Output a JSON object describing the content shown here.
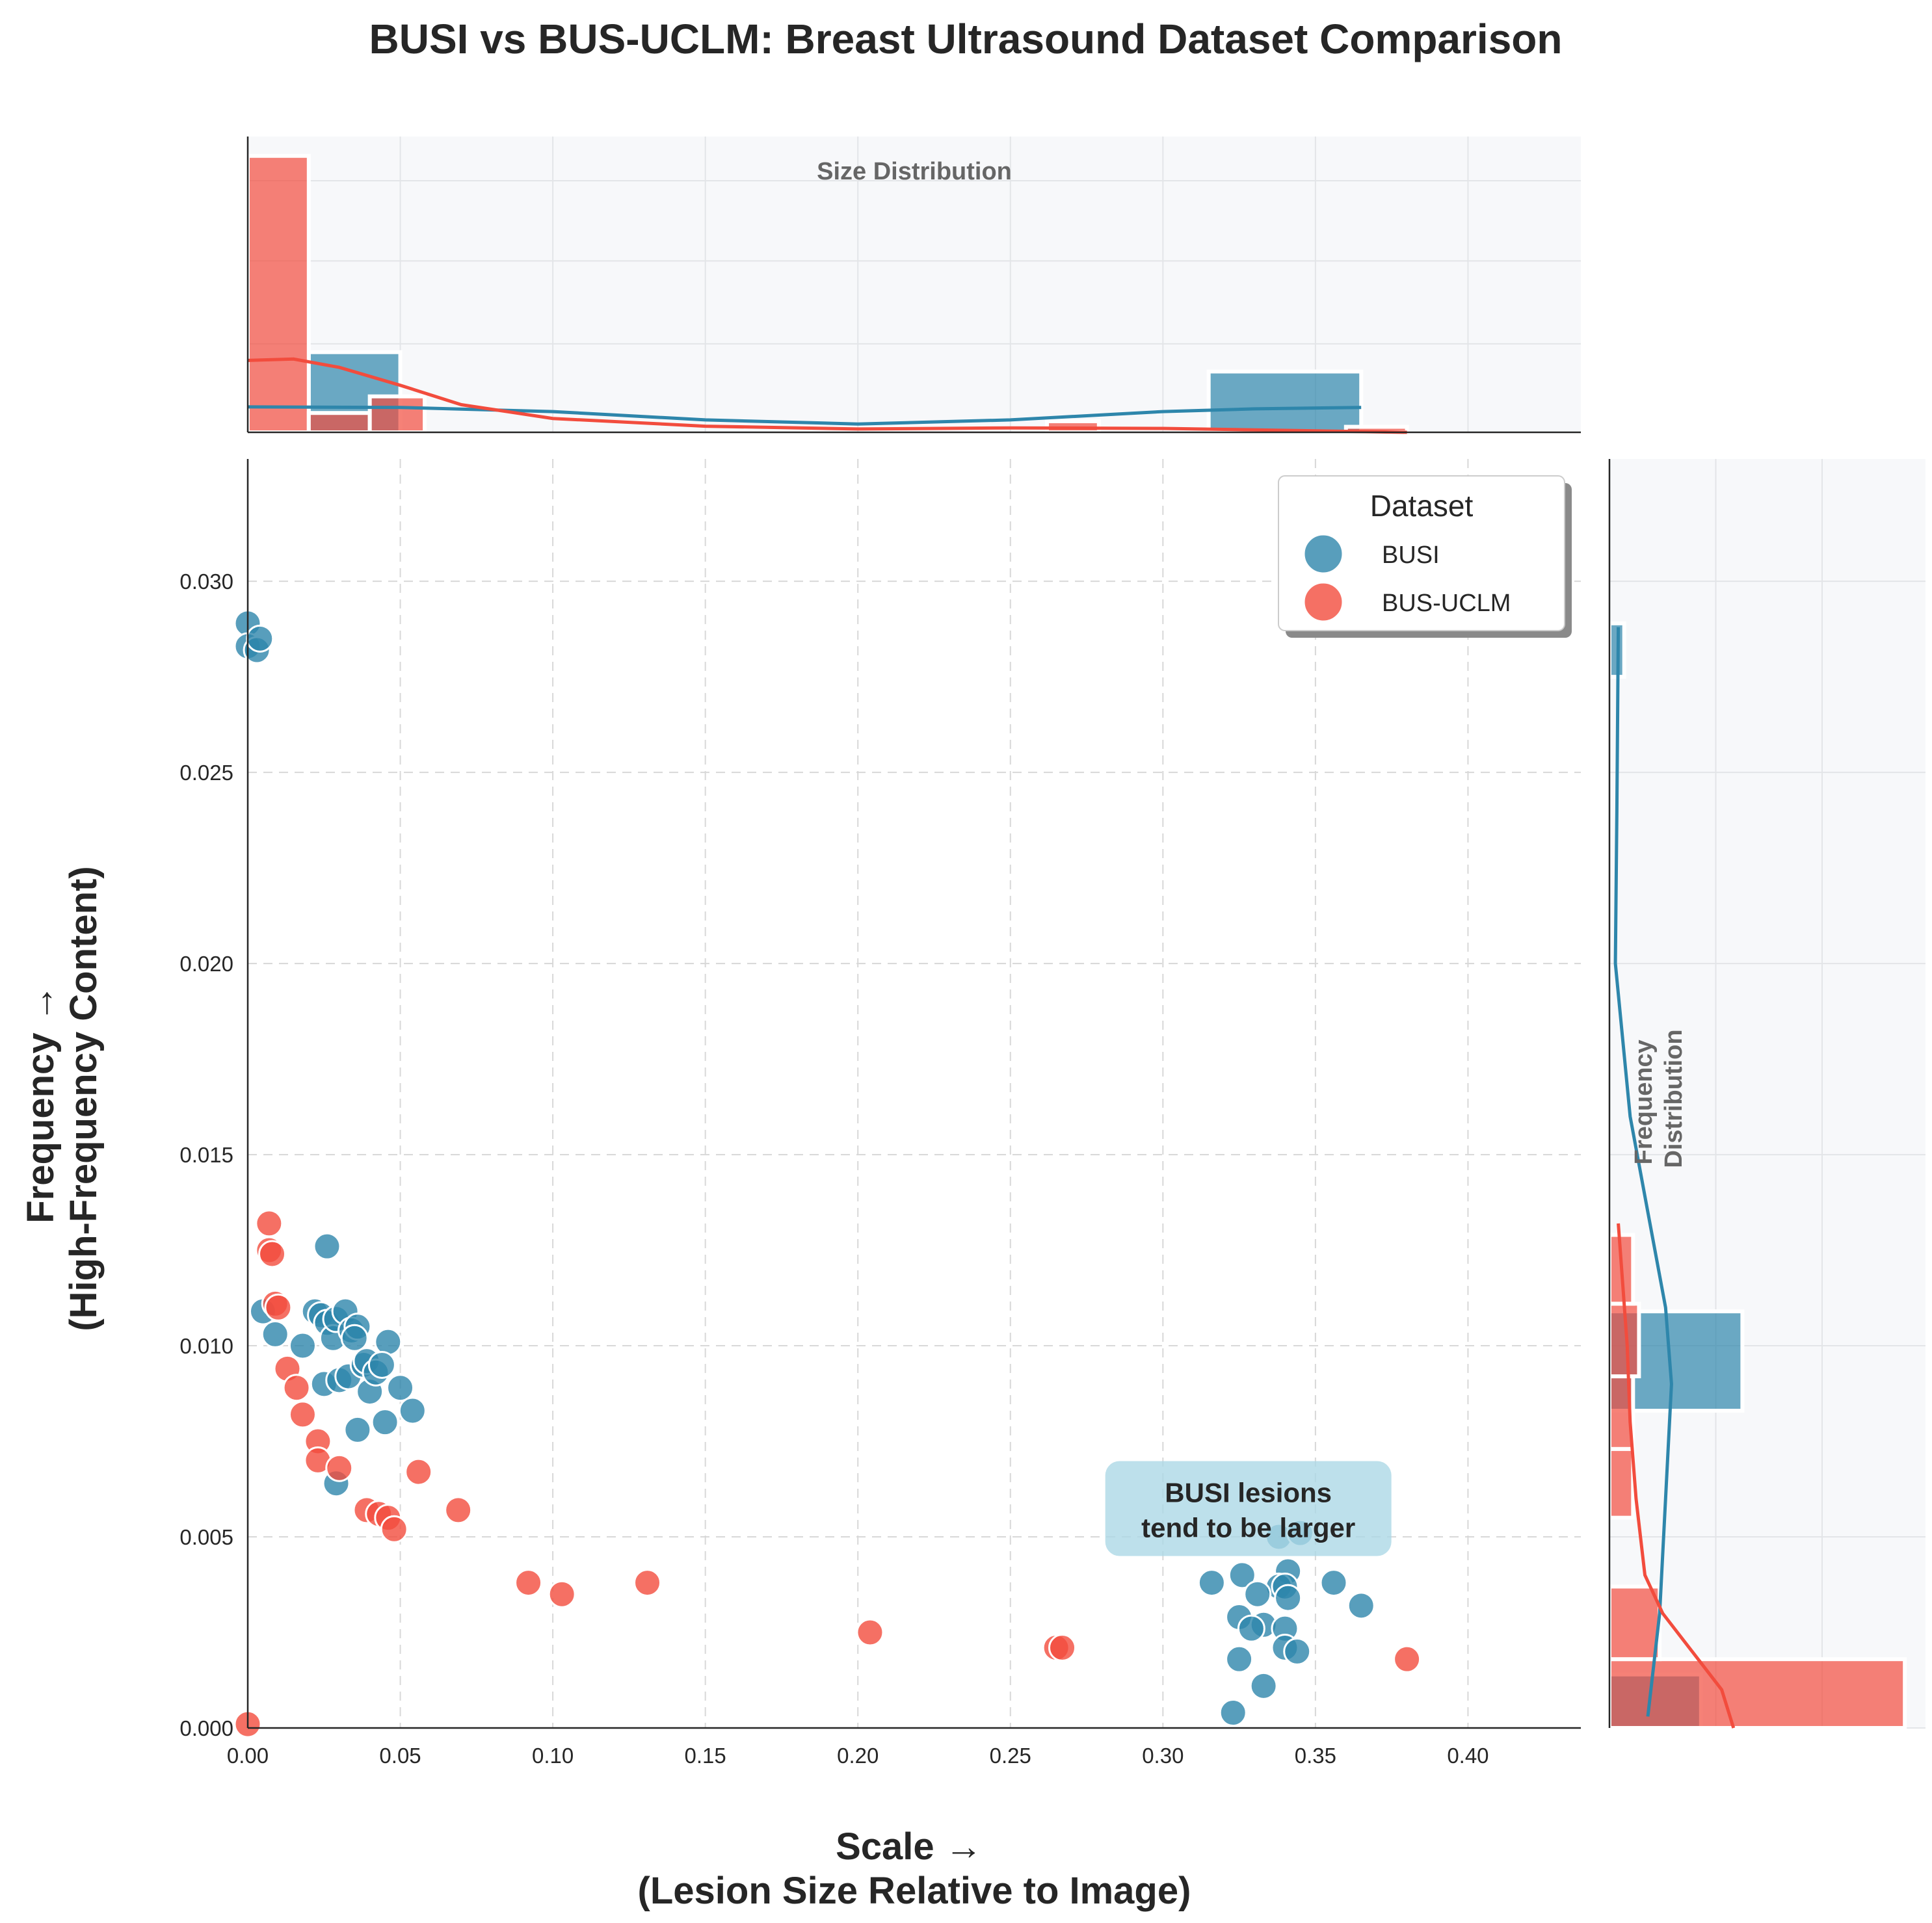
{
  "title": "BUSI vs BUS-UCLM: Breast Ultrasound Dataset Comparison",
  "chart_data": {
    "type": "scatter",
    "xlabel": [
      "Scale →",
      "(Lesion Size Relative to Image)"
    ],
    "ylabel": [
      "Frequency →",
      "(High-Frequency Content)"
    ],
    "xlim": [
      0.0,
      0.437
    ],
    "ylim": [
      0.0,
      0.0332
    ],
    "x_ticks": [
      "0.00",
      "0.05",
      "0.10",
      "0.15",
      "0.20",
      "0.25",
      "0.30",
      "0.35",
      "0.40"
    ],
    "y_ticks": [
      "0.000",
      "0.005",
      "0.010",
      "0.015",
      "0.020",
      "0.025",
      "0.030"
    ],
    "grid": true,
    "legend": {
      "title": "Dataset",
      "placement": "top-right"
    },
    "series": [
      {
        "name": "BUSI",
        "color": "#2e86ab",
        "points": [
          [
            0.0,
            0.0289
          ],
          [
            0.0,
            0.0283
          ],
          [
            0.003,
            0.0282
          ],
          [
            0.004,
            0.0285
          ],
          [
            0.026,
            0.0126
          ],
          [
            0.005,
            0.0109
          ],
          [
            0.009,
            0.0103
          ],
          [
            0.018,
            0.01
          ],
          [
            0.022,
            0.0109
          ],
          [
            0.024,
            0.0108
          ],
          [
            0.026,
            0.0106
          ],
          [
            0.028,
            0.0102
          ],
          [
            0.029,
            0.0107
          ],
          [
            0.032,
            0.0109
          ],
          [
            0.034,
            0.0104
          ],
          [
            0.036,
            0.0105
          ],
          [
            0.035,
            0.0102
          ],
          [
            0.046,
            0.0101
          ],
          [
            0.025,
            0.009
          ],
          [
            0.03,
            0.0091
          ],
          [
            0.033,
            0.0092
          ],
          [
            0.038,
            0.0095
          ],
          [
            0.039,
            0.0096
          ],
          [
            0.04,
            0.0088
          ],
          [
            0.042,
            0.0093
          ],
          [
            0.044,
            0.0095
          ],
          [
            0.05,
            0.0089
          ],
          [
            0.054,
            0.0083
          ],
          [
            0.036,
            0.0078
          ],
          [
            0.045,
            0.008
          ],
          [
            0.029,
            0.0064
          ],
          [
            0.338,
            0.005
          ],
          [
            0.345,
            0.0051
          ],
          [
            0.341,
            0.0041
          ],
          [
            0.326,
            0.004
          ],
          [
            0.316,
            0.0038
          ],
          [
            0.338,
            0.0037
          ],
          [
            0.356,
            0.0038
          ],
          [
            0.34,
            0.0037
          ],
          [
            0.331,
            0.0035
          ],
          [
            0.341,
            0.0034
          ],
          [
            0.365,
            0.0032
          ],
          [
            0.325,
            0.0029
          ],
          [
            0.333,
            0.0027
          ],
          [
            0.329,
            0.0026
          ],
          [
            0.34,
            0.0026
          ],
          [
            0.34,
            0.0021
          ],
          [
            0.344,
            0.002
          ],
          [
            0.325,
            0.0018
          ],
          [
            0.333,
            0.0011
          ],
          [
            0.323,
            0.0004
          ]
        ]
      },
      {
        "name": "BUS-UCLM",
        "color": "#f24c3d",
        "points": [
          [
            0.007,
            0.0132
          ],
          [
            0.007,
            0.0125
          ],
          [
            0.008,
            0.0124
          ],
          [
            0.009,
            0.0111
          ],
          [
            0.01,
            0.011
          ],
          [
            0.013,
            0.0094
          ],
          [
            0.016,
            0.0089
          ],
          [
            0.018,
            0.0082
          ],
          [
            0.023,
            0.0075
          ],
          [
            0.023,
            0.007
          ],
          [
            0.03,
            0.0068
          ],
          [
            0.056,
            0.0067
          ],
          [
            0.039,
            0.0057
          ],
          [
            0.043,
            0.0056
          ],
          [
            0.046,
            0.0055
          ],
          [
            0.048,
            0.0052
          ],
          [
            0.069,
            0.0057
          ],
          [
            0.092,
            0.0038
          ],
          [
            0.103,
            0.0035
          ],
          [
            0.131,
            0.0038
          ],
          [
            0.204,
            0.0025
          ],
          [
            0.265,
            0.0021
          ],
          [
            0.267,
            0.0021
          ],
          [
            0.38,
            0.0018
          ],
          [
            0.0,
            0.0001
          ]
        ]
      }
    ],
    "annotation": {
      "lines": [
        "BUSI lesions",
        "tend to be larger"
      ],
      "x": 0.328,
      "y": 0.0054
    },
    "marginal_top": {
      "label": "Size Distribution",
      "BUSI_hist": [
        [
          0.02,
          0.05,
          0.29
        ],
        [
          0.315,
          0.365,
          0.22
        ]
      ],
      "BUS_UCLM_hist": [
        [
          0.0,
          0.02,
          1.0
        ],
        [
          0.02,
          0.04,
          0.07
        ],
        [
          0.04,
          0.058,
          0.13
        ],
        [
          0.262,
          0.279,
          0.04
        ],
        [
          0.36,
          0.38,
          0.02
        ]
      ],
      "BUSI_kde": [
        [
          0.0,
          0.092
        ],
        [
          0.05,
          0.09
        ],
        [
          0.1,
          0.075
        ],
        [
          0.15,
          0.045
        ],
        [
          0.2,
          0.03
        ],
        [
          0.25,
          0.045
        ],
        [
          0.3,
          0.075
        ],
        [
          0.33,
          0.085
        ],
        [
          0.365,
          0.09
        ]
      ],
      "BUS_UCLM_kde": [
        [
          0.0,
          0.26
        ],
        [
          0.015,
          0.265
        ],
        [
          0.03,
          0.235
        ],
        [
          0.05,
          0.17
        ],
        [
          0.07,
          0.1
        ],
        [
          0.1,
          0.05
        ],
        [
          0.15,
          0.022
        ],
        [
          0.2,
          0.012
        ],
        [
          0.25,
          0.016
        ],
        [
          0.3,
          0.014
        ],
        [
          0.38,
          0.0
        ]
      ],
      "ymax": 1.07
    },
    "marginal_right": {
      "label": [
        "Frequency",
        "Distribution"
      ],
      "BUSI_hist": [
        [
          0.0,
          0.0014,
          0.31
        ],
        [
          0.0083,
          0.0109,
          0.45
        ],
        [
          0.0275,
          0.0289,
          0.05
        ]
      ],
      "BUS_UCLM_hist": [
        [
          0.0,
          0.0018,
          1.0
        ],
        [
          0.0018,
          0.0037,
          0.17
        ],
        [
          0.0055,
          0.0073,
          0.08
        ],
        [
          0.0073,
          0.0092,
          0.08
        ],
        [
          0.0092,
          0.0111,
          0.1
        ],
        [
          0.0111,
          0.0129,
          0.08
        ]
      ],
      "BUSI_kde": [
        [
          0.0003,
          0.13
        ],
        [
          0.003,
          0.17
        ],
        [
          0.006,
          0.19
        ],
        [
          0.009,
          0.21
        ],
        [
          0.011,
          0.19
        ],
        [
          0.0135,
          0.13
        ],
        [
          0.016,
          0.07
        ],
        [
          0.02,
          0.02
        ],
        [
          0.024,
          0.025
        ],
        [
          0.0288,
          0.03
        ]
      ],
      "BUS_UCLM_kde": [
        [
          0.0,
          0.42
        ],
        [
          0.001,
          0.38
        ],
        [
          0.002,
          0.28
        ],
        [
          0.003,
          0.18
        ],
        [
          0.004,
          0.12
        ],
        [
          0.006,
          0.09
        ],
        [
          0.008,
          0.07
        ],
        [
          0.01,
          0.06
        ],
        [
          0.0132,
          0.03
        ]
      ],
      "xmax": 1.07
    }
  }
}
